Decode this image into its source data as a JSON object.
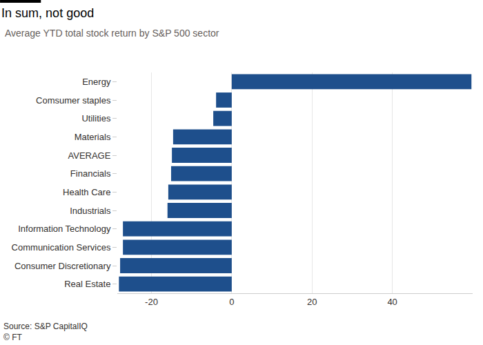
{
  "chart_data": {
    "type": "bar",
    "orientation": "horizontal",
    "title": "In sum, not good",
    "subtitle": "Average YTD total stock return by S&P 500 sector",
    "categories": [
      "Energy",
      "Comsumer staples",
      "Utilities",
      "Materials",
      "AVERAGE",
      "Financials",
      "Health Care",
      "Industrials",
      "Information Technology",
      "Communication Services",
      "Consumer Discretionary",
      "Real Estate"
    ],
    "values": [
      59.7,
      -3.9,
      -4.6,
      -14.6,
      -14.9,
      -15.1,
      -15.8,
      -16.0,
      -27.1,
      -27.1,
      -27.8,
      -28.1
    ],
    "color": "#1e4f8c",
    "xlim": [
      -28.5,
      60
    ],
    "xticks": [
      -20,
      0,
      20,
      40
    ],
    "grid": true,
    "annotations": [
      "Source: S&P CapitalIQ",
      "© FT"
    ]
  }
}
